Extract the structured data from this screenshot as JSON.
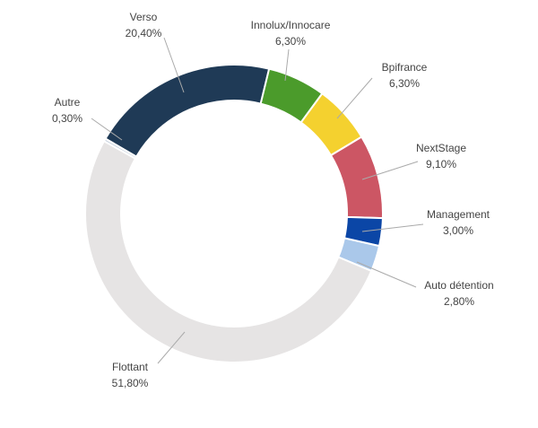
{
  "chart_data": {
    "type": "pie",
    "subtype": "donut",
    "title": "",
    "slices": [
      {
        "label": "Verso",
        "value": 20.4,
        "display": "20,40%",
        "color": "#1f3a56"
      },
      {
        "label": "Innolux/Innocare",
        "value": 6.3,
        "display": "6,30%",
        "color": "#4b9b2b"
      },
      {
        "label": "Bpifrance",
        "value": 6.3,
        "display": "6,30%",
        "color": "#f4d12f"
      },
      {
        "label": "NextStage",
        "value": 9.1,
        "display": "9,10%",
        "color": "#cc5664"
      },
      {
        "label": "Management",
        "value": 3.0,
        "display": "3,00%",
        "color": "#0b46a6"
      },
      {
        "label": "Auto détention",
        "value": 2.8,
        "display": "2,80%",
        "color": "#aac8ea"
      },
      {
        "label": "Flottant",
        "value": 51.8,
        "display": "51,80%",
        "color": "#e6e4e4"
      },
      {
        "label": "Autre",
        "value": 0.3,
        "display": "0,30%",
        "color": "#c9d3de"
      }
    ],
    "start_angle_deg": -59.8,
    "legend": "none"
  }
}
